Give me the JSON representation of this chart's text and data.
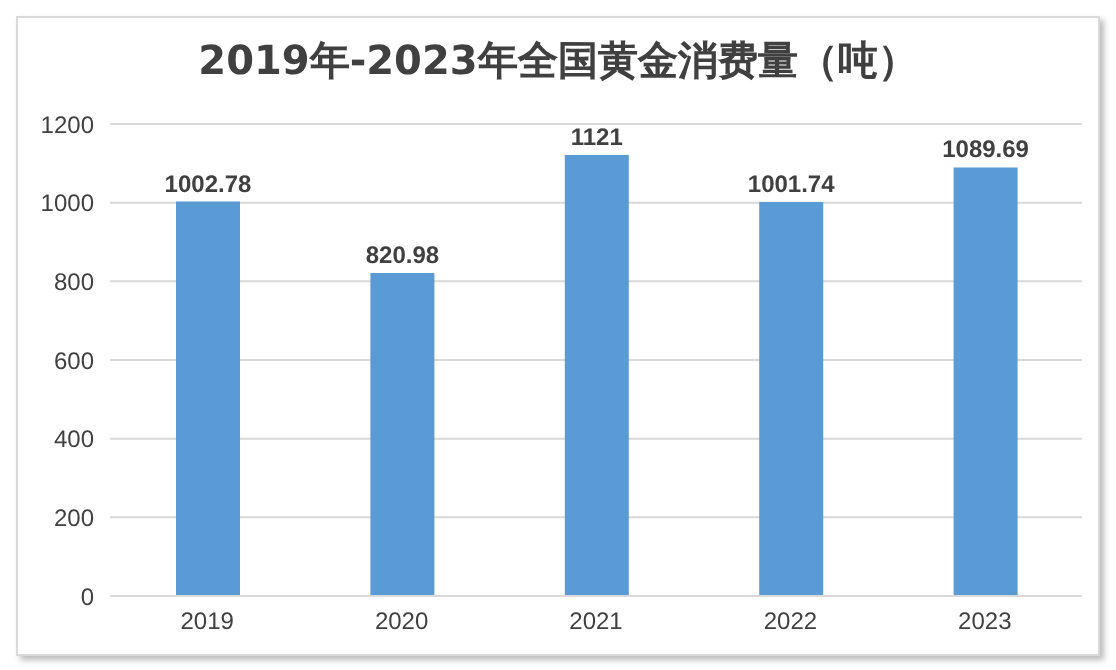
{
  "chart_data": {
    "type": "bar",
    "title": "2019年-2023年全国黄金消费量（吨）",
    "categories": [
      "2019",
      "2020",
      "2021",
      "2022",
      "2023"
    ],
    "values": [
      1002.78,
      820.98,
      1121,
      1001.74,
      1089.69
    ],
    "color": "#5b9bd5",
    "ylim": [
      0,
      1200
    ],
    "yticks": [
      0,
      200,
      400,
      600,
      800,
      1000,
      1200
    ],
    "grid": "y",
    "data_labels": true
  }
}
